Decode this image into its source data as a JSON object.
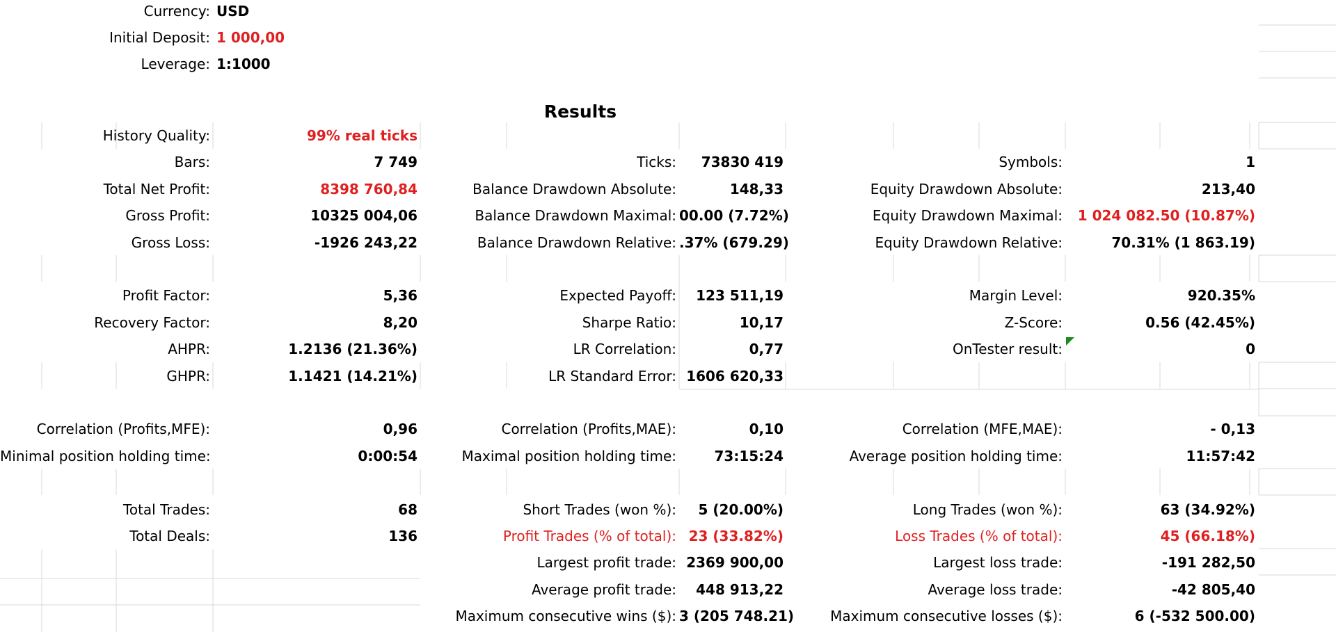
{
  "settings": {
    "currency_label": "Currency:",
    "currency_value": "USD",
    "deposit_label": "Initial Deposit:",
    "deposit_value": "1 000,00",
    "leverage_label": "Leverage:",
    "leverage_value": "1:1000"
  },
  "results_title": "Results",
  "rows": [
    [
      {
        "label": "History Quality:",
        "value": "99% real ticks",
        "red": true
      },
      null,
      null
    ],
    [
      {
        "label": "Bars:",
        "value": "7 749"
      },
      {
        "label": "Ticks:",
        "value": "73830 419"
      },
      {
        "label": "Symbols:",
        "value": "1"
      }
    ],
    [
      {
        "label": "Total Net Profit:",
        "value": "8398 760,84",
        "red": true
      },
      {
        "label": "Balance Drawdown Absolute:",
        "value": "148,33"
      },
      {
        "label": "Equity Drawdown Absolute:",
        "value": "213,40"
      }
    ],
    [
      {
        "label": "Gross Profit:",
        "value": "10325 004,06"
      },
      {
        "label": "Balance Drawdown Maximal:",
        "value": "00.00 (7.72%)"
      },
      {
        "label": "Equity Drawdown Maximal:",
        "value": "1 024 082.50 (10.87%)",
        "red": true
      }
    ],
    [
      {
        "label": "Gross Loss:",
        "value": "-1926 243,22"
      },
      {
        "label": "Balance Drawdown Relative:",
        "value": ".37% (679.29)"
      },
      {
        "label": "Equity Drawdown Relative:",
        "value": "70.31% (1 863.19)"
      }
    ],
    null,
    [
      {
        "label": "Profit Factor:",
        "value": "5,36"
      },
      {
        "label": "Expected Payoff:",
        "value": "123 511,19"
      },
      {
        "label": "Margin Level:",
        "value": "920.35%"
      }
    ],
    [
      {
        "label": "Recovery Factor:",
        "value": "8,20"
      },
      {
        "label": "Sharpe Ratio:",
        "value": "10,17"
      },
      {
        "label": "Z-Score:",
        "value": "0.56 (42.45%)"
      }
    ],
    [
      {
        "label": "AHPR:",
        "value": "1.2136 (21.36%)"
      },
      {
        "label": "LR Correlation:",
        "value": "0,77"
      },
      {
        "label": "OnTester result:",
        "value": "0"
      }
    ],
    [
      {
        "label": "GHPR:",
        "value": "1.1421 (14.21%)"
      },
      {
        "label": "LR Standard Error:",
        "value": "1606 620,33"
      },
      null
    ],
    null,
    [
      {
        "label": "Correlation (Profits,MFE):",
        "value": "0,96"
      },
      {
        "label": "Correlation (Profits,MAE):",
        "value": "0,10"
      },
      {
        "label": "Correlation (MFE,MAE):",
        "value": "- 0,13"
      }
    ],
    [
      {
        "label": "Minimal position holding time:",
        "value": "0:00:54"
      },
      {
        "label": "Maximal position holding time:",
        "value": "73:15:24"
      },
      {
        "label": "Average position holding time:",
        "value": "11:57:42"
      }
    ],
    null,
    [
      {
        "label": "Total Trades:",
        "value": "68"
      },
      {
        "label": "Short Trades (won %):",
        "value": "5 (20.00%)"
      },
      {
        "label": "Long Trades (won %):",
        "value": "63 (34.92%)"
      }
    ],
    [
      {
        "label": "Total Deals:",
        "value": "136"
      },
      {
        "label": "Profit Trades (% of total):",
        "value": "23 (33.82%)",
        "red": true,
        "label_red": true
      },
      {
        "label": "Loss Trades (% of total):",
        "value": "45 (66.18%)",
        "red": true,
        "label_red": true
      }
    ],
    [
      null,
      {
        "label": "Largest profit trade:",
        "value": "2369 900,00"
      },
      {
        "label": "Largest loss trade:",
        "value": "-191 282,50"
      }
    ],
    [
      null,
      {
        "label": "Average profit trade:",
        "value": "448 913,22"
      },
      {
        "label": "Average loss trade:",
        "value": "-42 805,40"
      }
    ],
    [
      null,
      {
        "label": "Maximum consecutive wins ($):",
        "value": "3 (205 748.21)"
      },
      {
        "label": "Maximum consecutive losses ($):",
        "value": "6 (-532 500.00)"
      }
    ]
  ],
  "colors": {
    "accent_red": "#e02020",
    "note_marker": "#1a8a1a",
    "grid": "#dadada"
  }
}
